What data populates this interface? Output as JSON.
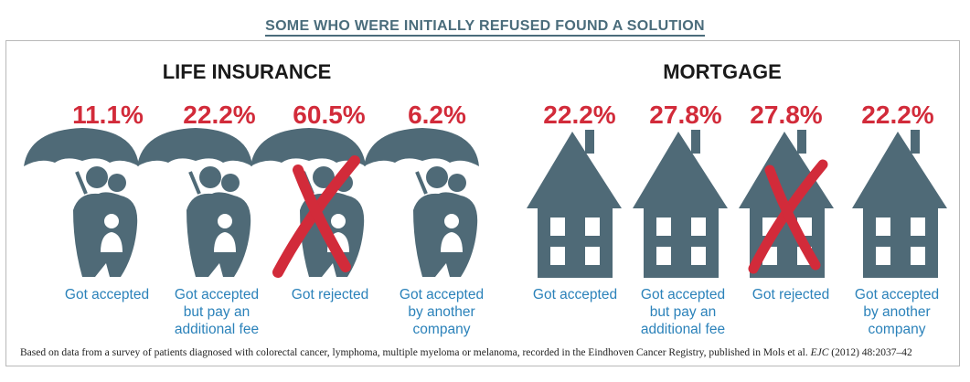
{
  "title": "SOME WHO WERE INITIALLY REFUSED FOUND A SOLUTION",
  "colors": {
    "icon": "#4f6a77",
    "accent": "#d22b3a",
    "label": "#2b82ba"
  },
  "chart_data": [
    {
      "type": "bar",
      "title": "LIFE INSURANCE",
      "icon": "umbrella-family-icon",
      "categories": [
        "Got accepted",
        "Got accepted but pay an additional fee",
        "Got rejected",
        "Got accepted by another company"
      ],
      "values": [
        "11.1%",
        "22.2%",
        "60.5%",
        "6.2%"
      ],
      "rejected_marker": [
        false,
        false,
        true,
        false
      ]
    },
    {
      "type": "bar",
      "title": "MORTGAGE",
      "icon": "house-icon",
      "categories": [
        "Got accepted",
        "Got accepted but pay an additional fee",
        "Got rejected",
        "Got accepted by another company"
      ],
      "values": [
        "22.2%",
        "27.8%",
        "27.8%",
        "22.2%"
      ],
      "rejected_marker": [
        false,
        false,
        true,
        false
      ]
    }
  ],
  "labels": {
    "life": [
      "Got accepted",
      "Got accepted|but pay an|additional fee",
      "Got rejected",
      "Got accepted|by another|company"
    ],
    "mortgage": [
      "Got accepted",
      "Got accepted|but pay an|additional fee",
      "Got rejected",
      "Got accepted|by another|company"
    ]
  },
  "footnote": {
    "pre": "Based on data from a survey of patients diagnosed with colorectal cancer, lymphoma, multiple myeloma or melanoma, recorded in the Eindhoven Cancer Registry, published in Mols et al.",
    "journal": "EJC",
    "post": "(2012) 48:2037–42"
  }
}
